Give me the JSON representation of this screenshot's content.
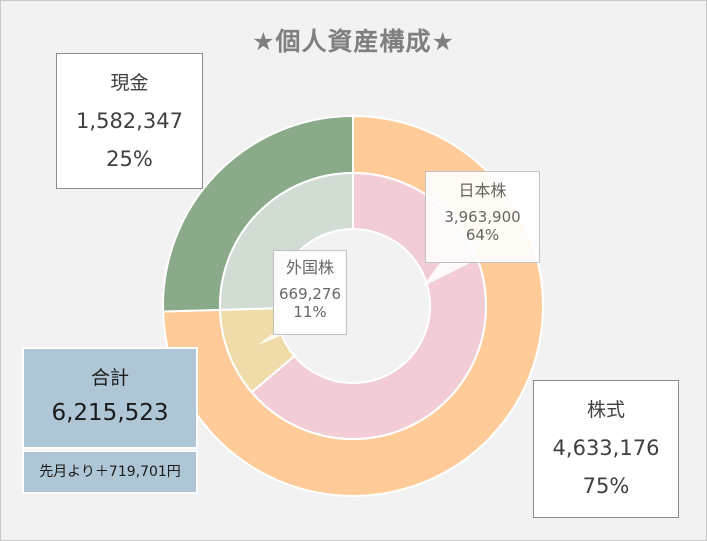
{
  "title": "★個人資産構成★",
  "chart_data": {
    "type": "donut",
    "outer_ring": [
      {
        "name": "株式",
        "value": 4633176,
        "value_label": "4,633,176",
        "percent": "75%",
        "color": "#ffcc99"
      },
      {
        "name": "現金",
        "value": 1582347,
        "value_label": "1,582,347",
        "percent": "25%",
        "color": "#8aaa8a"
      }
    ],
    "inner_ring": [
      {
        "name": "日本株",
        "value": 3963900,
        "value_label": "3,963,900",
        "percent": "64%",
        "color": "#f2cdd5"
      },
      {
        "name": "外国株",
        "value": 669276,
        "value_label": "669,276",
        "percent": "11%",
        "color": "#f0dca8"
      },
      {
        "name": "現金",
        "value": 1582347,
        "color": "#d1dcd2"
      }
    ]
  },
  "summary": {
    "total_label": "合計",
    "total_value": "6,215,523",
    "delta_text": "先月より＋719,701円"
  },
  "colors": {
    "background": "#f2f2f2",
    "summary_fill": "#aec6d5",
    "ring_border": "#ffffff"
  }
}
